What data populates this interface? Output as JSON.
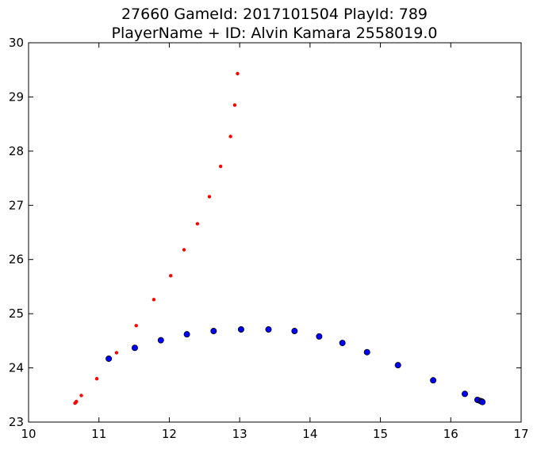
{
  "chart_data": {
    "type": "scatter",
    "title": [
      "27660 GameId: 2017101504 PlayId: 789",
      "PlayerName + ID: Alvin Kamara 2558019.0"
    ],
    "xlabel": "",
    "ylabel": "",
    "xlim": [
      10,
      17
    ],
    "ylim": [
      23,
      30
    ],
    "xticks": [
      10,
      11,
      12,
      13,
      14,
      15,
      16,
      17
    ],
    "yticks": [
      23,
      24,
      25,
      26,
      27,
      28,
      29,
      30
    ],
    "xtick_labels": [
      "10",
      "11",
      "12",
      "13",
      "14",
      "15",
      "16",
      "17"
    ],
    "ytick_labels": [
      "23",
      "24",
      "25",
      "26",
      "27",
      "28",
      "29",
      "30"
    ],
    "grid": false,
    "series": [
      {
        "color": "#ff0000",
        "marker": "small-dot",
        "points": [
          [
            12.97,
            29.43
          ],
          [
            12.93,
            28.85
          ],
          [
            12.87,
            28.27
          ],
          [
            12.73,
            27.72
          ],
          [
            12.57,
            27.16
          ],
          [
            12.4,
            26.66
          ],
          [
            12.21,
            26.18
          ],
          [
            12.02,
            25.7
          ],
          [
            11.78,
            25.26
          ],
          [
            11.53,
            24.78
          ],
          [
            11.25,
            24.28
          ],
          [
            10.97,
            23.8
          ],
          [
            10.75,
            23.49
          ],
          [
            10.68,
            23.38
          ],
          [
            10.67,
            23.36
          ],
          [
            10.66,
            23.35
          ]
        ]
      },
      {
        "color": "#0000ff",
        "marker": "circle",
        "points": [
          [
            11.14,
            24.17
          ],
          [
            11.51,
            24.37
          ],
          [
            11.88,
            24.51
          ],
          [
            12.25,
            24.62
          ],
          [
            12.63,
            24.68
          ],
          [
            13.02,
            24.71
          ],
          [
            13.41,
            24.71
          ],
          [
            13.78,
            24.68
          ],
          [
            14.13,
            24.58
          ],
          [
            14.46,
            24.46
          ],
          [
            14.81,
            24.29
          ],
          [
            15.25,
            24.05
          ],
          [
            15.75,
            23.77
          ],
          [
            16.2,
            23.52
          ],
          [
            16.38,
            23.41
          ],
          [
            16.42,
            23.39
          ],
          [
            16.44,
            23.38
          ],
          [
            16.45,
            23.37
          ]
        ]
      }
    ]
  }
}
